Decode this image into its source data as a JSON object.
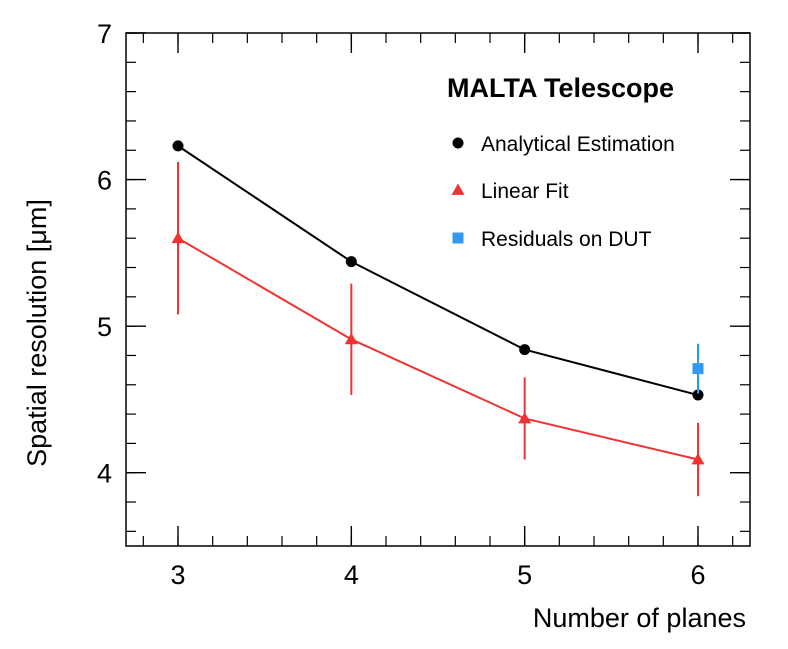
{
  "chart_data": {
    "type": "scatter",
    "title": "MALTA Telescope",
    "xlabel": "Number of planes",
    "ylabel": "Spatial resolution [μm]",
    "xlim": [
      2.7,
      6.3
    ],
    "ylim": [
      3.5,
      7.0
    ],
    "x_ticks": [
      3,
      4,
      5,
      6
    ],
    "x_tick_labels": [
      "3",
      "4",
      "5",
      "6"
    ],
    "y_ticks": [
      4,
      5,
      6,
      7
    ],
    "y_tick_labels": [
      "4",
      "5",
      "6",
      "7"
    ],
    "legend_position": "top-right",
    "series": [
      {
        "name": "Analytical Estimation",
        "color": "#000000",
        "marker": "circle",
        "line": true,
        "x": [
          3,
          4,
          5,
          6
        ],
        "y": [
          6.23,
          5.44,
          4.84,
          4.53
        ],
        "yerr": [
          0,
          0,
          0,
          0
        ]
      },
      {
        "name": "Linear Fit",
        "color": "#ee3333",
        "marker": "triangle",
        "line": true,
        "x": [
          3,
          4,
          5,
          6
        ],
        "y": [
          5.6,
          4.91,
          4.37,
          4.09
        ],
        "yerr": [
          0.52,
          0.38,
          0.28,
          0.25
        ]
      },
      {
        "name": "Residuals on DUT",
        "color": "#3399ee",
        "marker": "square",
        "line": false,
        "x": [
          6
        ],
        "y": [
          4.71
        ],
        "yerr": [
          0.17
        ]
      }
    ]
  }
}
